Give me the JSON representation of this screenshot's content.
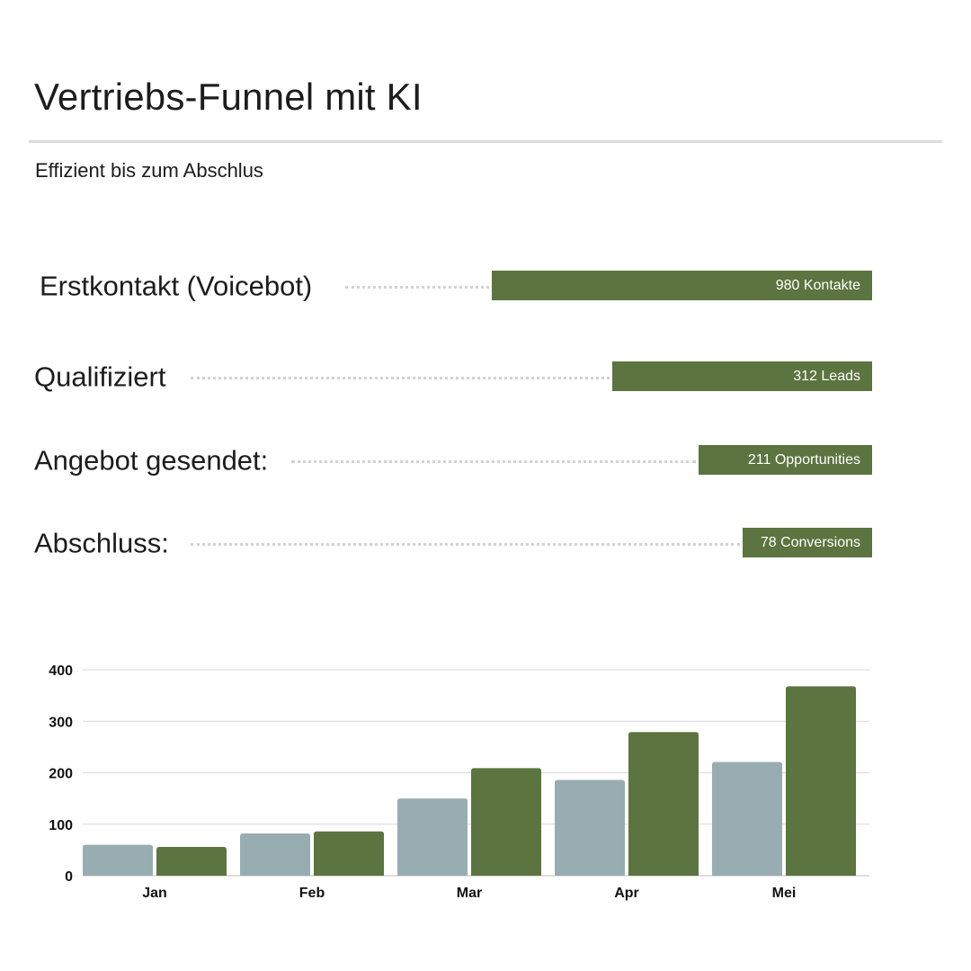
{
  "header": {
    "title": "Vertriebs-Funnel mit KI",
    "subtitle": "Effizient bis zum Abschlus"
  },
  "funnel": {
    "steps": [
      {
        "label": "Erstkontakt (Voicebot)",
        "value_label": "980 Kontakte",
        "value": 980
      },
      {
        "label": "Qualifiziert",
        "value_label": "312 Leads",
        "value": 312
      },
      {
        "label": "Angebot gesendet:",
        "value_label": "211 Opportunities",
        "value": 211
      },
      {
        "label": "Abschluss:",
        "value_label": "78 Conversions",
        "value": 78
      }
    ]
  },
  "colors": {
    "accent": "#5c743f",
    "secondary": "#98adb1",
    "gridline": "#d9d9d9",
    "dots": "#d2d2d2"
  },
  "chart_data": {
    "type": "bar",
    "categories": [
      "Jan",
      "Feb",
      "Mar",
      "Apr",
      "Mei"
    ],
    "series": [
      {
        "values": [
          60,
          82,
          150,
          186,
          221
        ],
        "color": "#98adb1"
      },
      {
        "values": [
          56,
          86,
          209,
          279,
          368
        ],
        "color": "#5c743f"
      }
    ],
    "ylim": [
      0,
      400
    ],
    "yticks": [
      0,
      100,
      200,
      300,
      400
    ],
    "grid": true,
    "xlabel": "",
    "ylabel": ""
  }
}
